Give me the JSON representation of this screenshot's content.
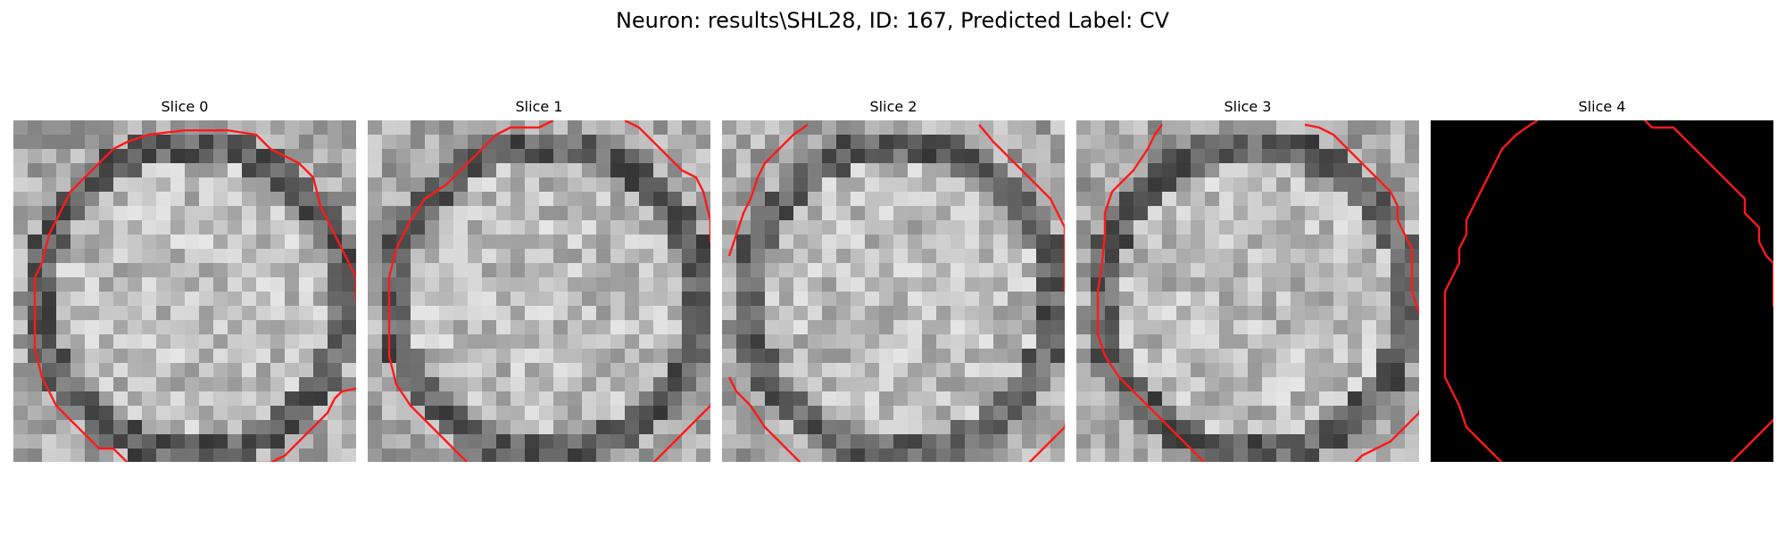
{
  "figure": {
    "title": "Neuron: results\\SHL28, ID: 167, Predicted Label: CV",
    "colors": {
      "contour": "#ff1a1a",
      "background": "#000000"
    },
    "panels": [
      {
        "title": "Slice 0"
      },
      {
        "title": "Slice 1"
      },
      {
        "title": "Slice 2"
      },
      {
        "title": "Slice 3"
      },
      {
        "title": "Slice 4"
      }
    ]
  }
}
